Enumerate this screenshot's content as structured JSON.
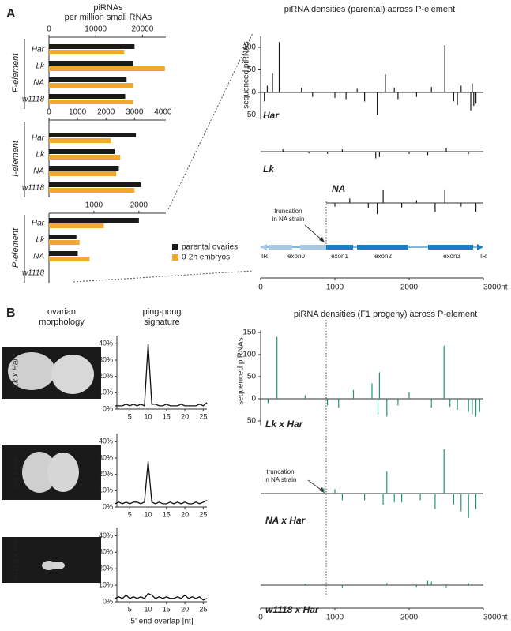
{
  "panel_labels": [
    "A",
    "B"
  ],
  "morphology": {
    "title": [
      "ovarian",
      "morphology"
    ],
    "labels": [
      "Lk x Har",
      "NA x Har",
      "w1118 x Har"
    ]
  },
  "chart_data": [
    {
      "type": "hbar",
      "title": "piRNAs",
      "subtitle": "per million small RNAs",
      "group_label": "F-element",
      "categories": [
        "Har",
        "Lk",
        "NA",
        "w1118"
      ],
      "series": [
        {
          "name": "parental ovaries",
          "color": "#1a1a1a",
          "values": [
            18300,
            18000,
            16600,
            16300
          ]
        },
        {
          "name": "0-2h embryos",
          "color": "#f0a830",
          "values": [
            16100,
            24800,
            18000,
            18000
          ]
        }
      ],
      "xlim": [
        0,
        25000
      ],
      "xticks": [
        0,
        10000,
        20000
      ]
    },
    {
      "type": "hbar",
      "group_label": "I-element",
      "categories": [
        "Har",
        "Lk",
        "NA",
        "w1118"
      ],
      "series": [
        {
          "name": "parental ovaries",
          "color": "#1a1a1a",
          "values": [
            3050,
            2300,
            2450,
            3220
          ]
        },
        {
          "name": "0-2h embryos",
          "color": "#f0a830",
          "values": [
            2170,
            2500,
            2360,
            3000
          ]
        }
      ],
      "xlim": [
        0,
        4100
      ],
      "xticks": [
        0,
        1000,
        2000,
        3000,
        4000
      ]
    },
    {
      "type": "hbar",
      "group_label": "P-element",
      "legend": "lower right",
      "categories": [
        "Har",
        "Lk",
        "NA",
        "w1118"
      ],
      "series": [
        {
          "name": "parental ovaries",
          "color": "#1a1a1a",
          "values": [
            2000,
            610,
            640,
            0
          ]
        },
        {
          "name": "0-2h embryos",
          "color": "#f0a830",
          "values": [
            1220,
            680,
            900,
            0
          ]
        }
      ],
      "xlim": [
        0,
        2600
      ],
      "xticks": [
        1000,
        2000
      ]
    },
    {
      "type": "density",
      "title": "piRNA densities (parental) across P-element",
      "ylabel": "sequenced piRNAs",
      "annotation": [
        "truncation",
        "in NA strain"
      ],
      "gene_labels": [
        "IR",
        "exon0",
        "exon1",
        "exon2",
        "exon3",
        "IR"
      ],
      "xlim": [
        0,
        3000
      ],
      "xticks": [
        0,
        1000,
        2000,
        {
          "value": 3000,
          "label": "3000nt"
        }
      ],
      "ylim": [
        -60,
        125
      ],
      "yticks": [
        {
          "value": -50,
          "label": "50"
        },
        0,
        50,
        100
      ],
      "series": [
        {
          "name": "Har",
          "color": "#1a1a1a",
          "x": [
            50,
            90,
            160,
            250,
            550,
            700,
            1000,
            1150,
            1300,
            1400,
            1570,
            1680,
            1800,
            1850,
            2100,
            2300,
            2480,
            2600,
            2650,
            2700,
            2830,
            2850,
            2870,
            2900
          ],
          "values": [
            -20,
            15,
            42,
            112,
            10,
            -10,
            -12,
            -15,
            8,
            -20,
            -50,
            40,
            10,
            -15,
            -10,
            12,
            105,
            -20,
            -28,
            15,
            -40,
            20,
            -30,
            -25
          ]
        },
        {
          "name": "Lk",
          "color": "#1a1a1a",
          "x": [
            300,
            650,
            900,
            1100,
            1550,
            1600,
            2000,
            2250,
            2500,
            2800
          ],
          "values": [
            5,
            -4,
            -5,
            5,
            -15,
            -12,
            -5,
            -8,
            8,
            -5
          ]
        },
        {
          "name": "NA",
          "color": "#1a1a1a",
          "x": [
            1000,
            1200,
            1450,
            1570,
            1650,
            1900,
            2100,
            2350,
            2480,
            2700,
            2900
          ],
          "values": [
            -8,
            10,
            -12,
            -25,
            30,
            -10,
            6,
            -20,
            30,
            -8,
            -20
          ]
        }
      ]
    },
    {
      "type": "line",
      "title": "ping-pong",
      "subtitle": "signature",
      "x": [
        1,
        2,
        3,
        4,
        5,
        6,
        7,
        8,
        9,
        10,
        11,
        12,
        13,
        14,
        15,
        16,
        17,
        18,
        19,
        20,
        21,
        22,
        23,
        24,
        25,
        26
      ],
      "values": [
        2,
        2,
        2,
        3,
        2,
        3,
        2,
        3,
        2,
        40,
        3,
        3,
        2,
        2,
        3,
        2,
        2,
        2,
        3,
        2,
        2,
        2,
        2,
        3,
        2,
        4
      ],
      "xlim": [
        1.5,
        26
      ],
      "xticks": [
        5,
        10,
        15,
        20,
        25
      ],
      "ylim": [
        0,
        45
      ],
      "yticks": [
        {
          "value": 0,
          "label": "0%"
        },
        {
          "value": 10,
          "label": "10%"
        },
        {
          "value": 20,
          "label": "20%"
        },
        {
          "value": 30,
          "label": "30%"
        },
        {
          "value": 40,
          "label": "40%"
        }
      ]
    },
    {
      "type": "line",
      "x": [
        1,
        2,
        3,
        4,
        5,
        6,
        7,
        8,
        9,
        10,
        11,
        12,
        13,
        14,
        15,
        16,
        17,
        18,
        19,
        20,
        21,
        22,
        23,
        24,
        25,
        26
      ],
      "values": [
        2,
        3,
        2,
        3,
        2,
        3,
        3,
        2,
        3,
        28,
        3,
        2,
        3,
        2,
        2,
        3,
        2,
        3,
        2,
        3,
        2,
        2,
        3,
        2,
        3,
        4
      ],
      "xlim": [
        1.5,
        26
      ],
      "xticks": [
        5,
        10,
        15,
        20,
        25
      ],
      "ylim": [
        0,
        45
      ],
      "yticks": [
        {
          "value": 0,
          "label": "0%"
        },
        {
          "value": 10,
          "label": "10%"
        },
        {
          "value": 20,
          "label": "20%"
        },
        {
          "value": 30,
          "label": "30%"
        },
        {
          "value": 40,
          "label": "40%"
        }
      ]
    },
    {
      "type": "line",
      "xlabel": "5' end overlap [nt]",
      "x": [
        1,
        2,
        3,
        4,
        5,
        6,
        7,
        8,
        9,
        10,
        11,
        12,
        13,
        14,
        15,
        16,
        17,
        18,
        19,
        20,
        21,
        22,
        23,
        24,
        25,
        26
      ],
      "values": [
        2,
        3,
        2,
        4,
        2,
        3,
        2,
        3,
        2,
        5,
        4,
        2,
        3,
        2,
        3,
        2,
        2,
        3,
        2,
        4,
        2,
        3,
        2,
        3,
        1,
        2
      ],
      "xlim": [
        1.5,
        26
      ],
      "xticks": [
        5,
        10,
        15,
        20,
        25
      ],
      "ylim": [
        0,
        45
      ],
      "yticks": [
        {
          "value": 0,
          "label": "0%"
        },
        {
          "value": 10,
          "label": "10%"
        },
        {
          "value": 20,
          "label": "20%"
        },
        {
          "value": 30,
          "label": "30%"
        },
        {
          "value": 40,
          "label": "40%"
        }
      ]
    },
    {
      "type": "density",
      "title": "piRNA densities (F1 progeny) across P-element",
      "ylabel": "sequenced piRNAs",
      "annotation": [
        "truncation",
        "in NA strain"
      ],
      "xlim": [
        0,
        3000
      ],
      "xticks": [
        0,
        1000,
        2000,
        {
          "value": 3000,
          "label": "3000nt"
        }
      ],
      "ylim": [
        -60,
        155
      ],
      "yticks": [
        {
          "value": -50,
          "label": "50"
        },
        0,
        50,
        100,
        150
      ],
      "series": [
        {
          "name": "Lk x Har",
          "color": "#1f9a6e",
          "x": [
            100,
            220,
            600,
            900,
            1050,
            1250,
            1500,
            1580,
            1600,
            1700,
            1850,
            2000,
            2300,
            2470,
            2550,
            2650,
            2800,
            2850,
            2900,
            2950
          ],
          "values": [
            -10,
            140,
            8,
            -15,
            -20,
            20,
            35,
            -35,
            60,
            -40,
            -15,
            15,
            -20,
            120,
            -18,
            -25,
            -30,
            -35,
            -40,
            -30
          ]
        },
        {
          "name": "NA x Har",
          "color": "#1f9a6e",
          "x": [
            850,
            1000,
            1100,
            1400,
            1650,
            1700,
            1800,
            1900,
            2150,
            2350,
            2470,
            2600,
            2700,
            2800,
            2900
          ],
          "values": [
            12,
            10,
            -15,
            -15,
            -25,
            50,
            -20,
            -20,
            -15,
            -35,
            100,
            -25,
            -40,
            -55,
            -35
          ]
        },
        {
          "name": "w1118 x Har",
          "color": "#1f9a6e",
          "x": [
            600,
            1100,
            1700,
            2100,
            2250,
            2300,
            2500,
            2800
          ],
          "values": [
            3,
            -5,
            5,
            -4,
            10,
            8,
            -5,
            5
          ]
        }
      ]
    }
  ]
}
